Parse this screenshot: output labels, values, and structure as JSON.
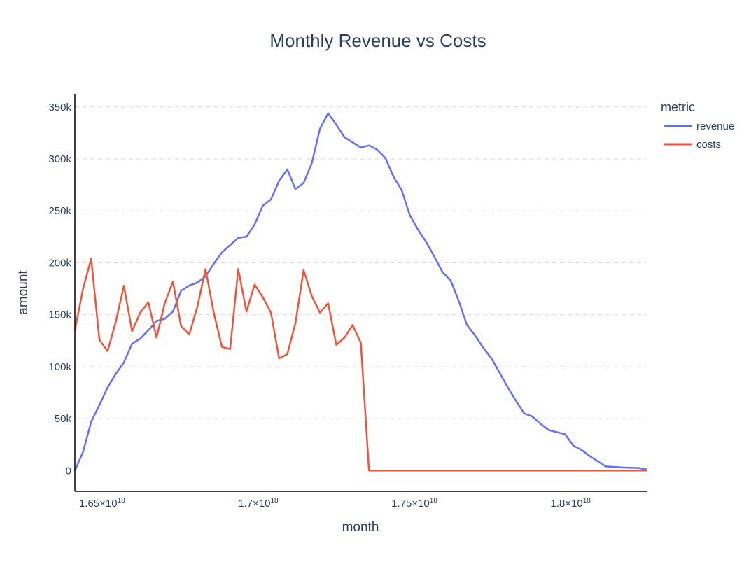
{
  "chart_data": {
    "type": "line",
    "title": "Monthly Revenue vs Costs",
    "xlabel": "month",
    "ylabel": "amount",
    "x_range": [
      1.6413e+18,
      1.8244e+18
    ],
    "ylim": [
      -20000,
      362000
    ],
    "grid": true,
    "x_ticks": [
      {
        "value": 1.65e+18,
        "mantissa": "1.65×10",
        "exp": "18"
      },
      {
        "value": 1.7e+18,
        "mantissa": "1.7×10",
        "exp": "18"
      },
      {
        "value": 1.75e+18,
        "mantissa": "1.75×10",
        "exp": "18"
      },
      {
        "value": 1.8e+18,
        "mantissa": "1.8×10",
        "exp": "18"
      }
    ],
    "y_ticks": [
      {
        "value": 0,
        "label": "0"
      },
      {
        "value": 50000,
        "label": "50k"
      },
      {
        "value": 100000,
        "label": "100k"
      },
      {
        "value": 150000,
        "label": "150k"
      },
      {
        "value": 200000,
        "label": "200k"
      },
      {
        "value": 250000,
        "label": "250k"
      },
      {
        "value": 300000,
        "label": "300k"
      },
      {
        "value": 350000,
        "label": "350k"
      }
    ],
    "x_start": 1.6413e+18,
    "x_step": 2615700000000000.0,
    "legend": {
      "title": "metric",
      "position": "top-right"
    },
    "series": [
      {
        "name": "revenue",
        "color": "#636efa",
        "values": [
          0,
          18000,
          47000,
          63000,
          80000,
          93000,
          104000,
          122000,
          127000,
          135000,
          144000,
          146000,
          153000,
          173000,
          178000,
          181000,
          187000,
          199000,
          210000,
          217000,
          224000,
          225000,
          237000,
          255000,
          261000,
          279000,
          290000,
          271000,
          277000,
          296000,
          329000,
          344000,
          333000,
          321000,
          316000,
          311000,
          313000,
          309000,
          301000,
          283000,
          270000,
          246000,
          232000,
          220000,
          206000,
          191000,
          183000,
          163000,
          140000,
          130000,
          118000,
          108000,
          94000,
          80000,
          67000,
          55000,
          52000,
          45000,
          39000,
          37000,
          35000,
          24000,
          20000,
          14000,
          9000,
          4000,
          3500,
          3000,
          2800,
          2500,
          1000
        ]
      },
      {
        "name": "costs",
        "color": "#ef553b",
        "values": [
          135000,
          175000,
          204000,
          126000,
          115000,
          143000,
          178000,
          134000,
          152000,
          162000,
          128000,
          161000,
          182000,
          139000,
          131000,
          158000,
          194000,
          152000,
          119000,
          117000,
          194000,
          153000,
          179000,
          167000,
          152000,
          108000,
          112000,
          142000,
          193000,
          168000,
          152000,
          161000,
          121000,
          128000,
          140000,
          123000,
          0,
          0,
          0,
          0,
          0,
          0,
          0,
          0,
          0,
          0,
          0,
          0,
          0,
          0,
          0,
          0,
          0,
          0,
          0,
          0,
          0,
          0,
          0,
          0,
          0,
          0,
          0,
          0,
          0,
          0,
          0,
          0,
          0,
          0,
          0
        ]
      }
    ]
  }
}
